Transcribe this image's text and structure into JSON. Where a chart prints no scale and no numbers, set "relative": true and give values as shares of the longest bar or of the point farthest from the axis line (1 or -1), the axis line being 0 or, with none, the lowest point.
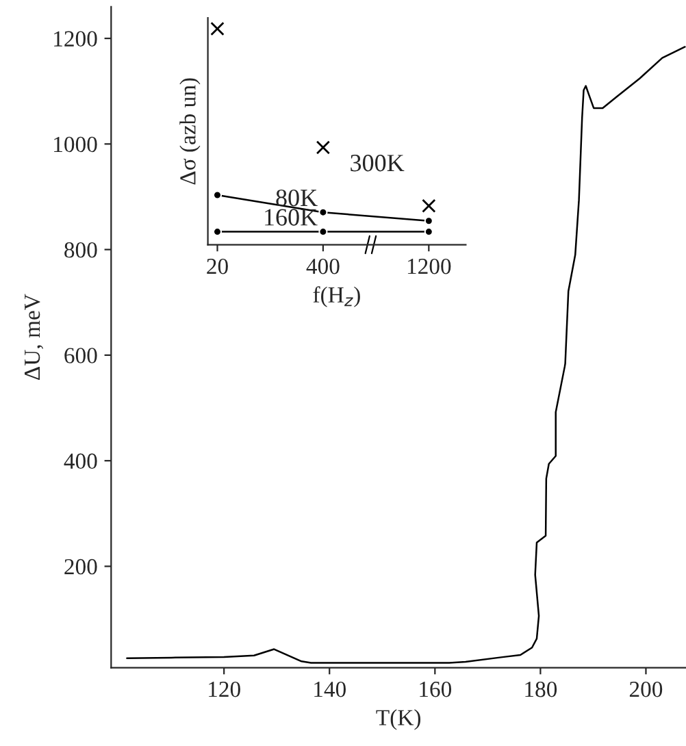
{
  "chart_data": [
    {
      "type": "line",
      "xlabel": "T(K)",
      "ylabel": "ΔU, meV",
      "xlim": [
        98.6,
        207.6
      ],
      "ylim": [
        8,
        1260
      ],
      "xticks": [
        120,
        140,
        160,
        180,
        200
      ],
      "yticks": [
        200,
        400,
        600,
        800,
        1000,
        1200
      ],
      "grid": false,
      "legend": false,
      "marker": "none",
      "line_style": "solid",
      "series": [
        {
          "color": "#000000",
          "x": [
            101.6,
            110,
            120,
            125.7,
            129.5,
            134.7,
            136.5,
            150,
            162.7,
            165.8,
            172.8,
            176.2,
            178.4,
            179.3,
            179.7,
            179,
            179.3,
            181,
            181.1,
            181.6,
            182.9,
            182.9,
            184.6,
            184.7,
            185.3,
            186.6,
            187.3,
            187.9,
            188.2,
            188.6,
            189.2,
            190.1,
            191.8,
            194.4,
            198.8,
            203.1,
            207.4
          ],
          "values": [
            26,
            27,
            28,
            31,
            43,
            20,
            17,
            17,
            17,
            19,
            28,
            32,
            46,
            63,
            106,
            184,
            245,
            258,
            366,
            394,
            409,
            492,
            578,
            584,
            721,
            790,
            894,
            1050,
            1102,
            1110,
            1093,
            1068,
            1068,
            1089,
            1124,
            1163,
            1184
          ]
        }
      ]
    },
    {
      "type": "line",
      "xlabel": "f(H$_{z}$)",
      "ylabel": "Δσ (azb un)",
      "categories": [
        "20",
        "400",
        "1200"
      ],
      "relative": true,
      "grid": false,
      "legend": false,
      "series": [
        {
          "name": "300K",
          "type": "scatter",
          "marker": "cross",
          "color": "#000000",
          "values": [
            1,
            0.45,
            0.18
          ]
        },
        {
          "name": "80K",
          "type": "line",
          "marker": "circle",
          "line_style": "solid",
          "color": "#000000",
          "values": [
            0.23,
            0.15,
            0.11
          ]
        },
        {
          "name": "160K",
          "type": "line",
          "marker": "circle",
          "line_style": "solid",
          "color": "#000000",
          "values": [
            0.06,
            0.06,
            0.06
          ]
        }
      ]
    }
  ]
}
